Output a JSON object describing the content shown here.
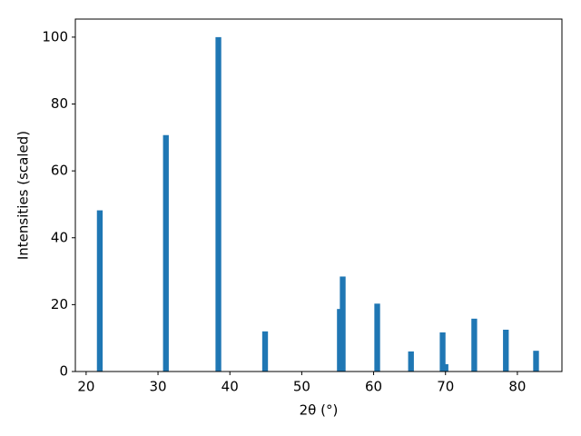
{
  "chart_data": {
    "type": "bar",
    "xlabel": "2θ (°)",
    "ylabel": "Intensities (scaled)",
    "x": [
      21.9,
      31.1,
      38.4,
      44.9,
      55.3,
      55.7,
      60.5,
      65.2,
      69.6,
      70.0,
      74.0,
      78.4,
      82.6
    ],
    "values": [
      48.2,
      70.7,
      100,
      12,
      18.7,
      28.4,
      20.3,
      6,
      11.7,
      2.2,
      15.8,
      12.5,
      6.2
    ],
    "color": "#1f77b4",
    "xlim": [
      18.5,
      86.2
    ],
    "ylim": [
      0,
      105.4
    ],
    "xticks": [
      20,
      30,
      40,
      50,
      60,
      70,
      80
    ],
    "yticks": [
      0,
      20,
      40,
      60,
      80,
      100
    ],
    "grid": false
  }
}
